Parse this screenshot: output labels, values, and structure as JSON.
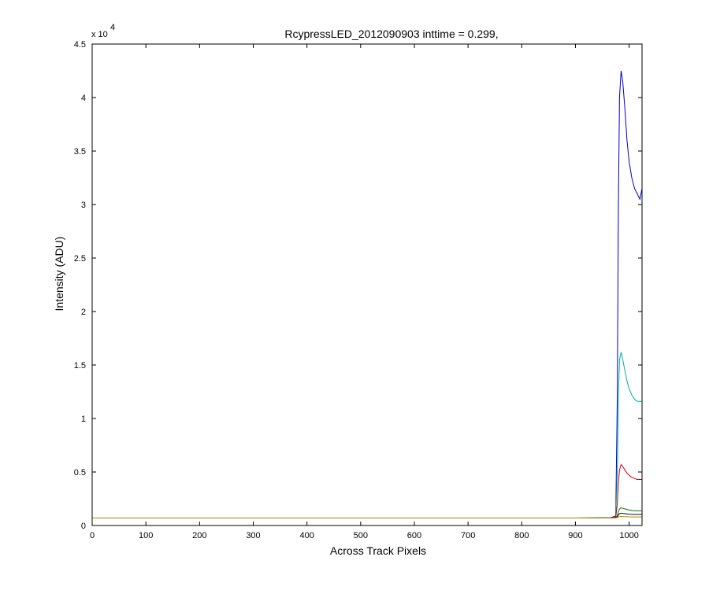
{
  "chart_data": {
    "type": "line",
    "title": "RcypressLED_2012090903 inttime = 0.299,",
    "xlabel": "Across Track Pixels",
    "ylabel": "Intensity (ADU)",
    "y_multiplier_label": "x 10",
    "y_multiplier_exponent": "4",
    "xlim": [
      0,
      1024
    ],
    "ylim": [
      0,
      45000
    ],
    "x_ticks": [
      0,
      100,
      200,
      300,
      400,
      500,
      600,
      700,
      800,
      900,
      1000
    ],
    "x_tick_labels": [
      "0",
      "100",
      "200",
      "300",
      "400",
      "500",
      "600",
      "700",
      "800",
      "900",
      "1000"
    ],
    "y_ticks": [
      0,
      5000,
      10000,
      15000,
      20000,
      25000,
      30000,
      35000,
      40000,
      45000
    ],
    "y_tick_labels": [
      "0",
      "0.5",
      "1",
      "1.5",
      "2",
      "2.5",
      "3",
      "3.5",
      "4",
      "4.5"
    ],
    "grid": false,
    "legend": "none",
    "series": [
      {
        "color": "#0000cc",
        "x": [
          0,
          900,
          965,
          975,
          978,
          980,
          982,
          985,
          988,
          992,
          996,
          1000,
          1005,
          1010,
          1015,
          1020,
          1024
        ],
        "values": [
          700,
          700,
          720,
          900,
          12000,
          30000,
          40000,
          42500,
          41500,
          39000,
          36000,
          34000,
          32500,
          31500,
          31000,
          30500,
          31500
        ]
      },
      {
        "color": "#00aaaa",
        "x": [
          0,
          900,
          965,
          975,
          978,
          980,
          982,
          985,
          988,
          992,
          996,
          1000,
          1005,
          1010,
          1015,
          1020,
          1024
        ],
        "values": [
          700,
          700,
          720,
          800,
          5000,
          12000,
          15500,
          16200,
          15500,
          14500,
          13500,
          12800,
          12200,
          11800,
          11600,
          11600,
          11600
        ]
      },
      {
        "color": "#cc0000",
        "x": [
          0,
          900,
          965,
          975,
          978,
          980,
          982,
          985,
          988,
          992,
          996,
          1000,
          1005,
          1010,
          1015,
          1020,
          1024
        ],
        "values": [
          700,
          700,
          710,
          750,
          2000,
          4000,
          5200,
          5700,
          5500,
          5200,
          4900,
          4700,
          4500,
          4400,
          4300,
          4300,
          4300
        ]
      },
      {
        "color": "#007700",
        "x": [
          0,
          900,
          965,
          975,
          978,
          980,
          982,
          985,
          988,
          992,
          996,
          1000,
          1005,
          1010,
          1015,
          1020,
          1024
        ],
        "values": [
          700,
          700,
          705,
          720,
          900,
          1300,
          1550,
          1650,
          1600,
          1550,
          1500,
          1450,
          1400,
          1380,
          1380,
          1380,
          1380
        ]
      },
      {
        "color": "#111111",
        "x": [
          0,
          900,
          965,
          975,
          978,
          980,
          982,
          985,
          988,
          992,
          996,
          1000,
          1005,
          1010,
          1015,
          1020,
          1024
        ],
        "values": [
          700,
          700,
          702,
          710,
          800,
          1000,
          1100,
          1150,
          1120,
          1100,
          1080,
          1060,
          1050,
          1040,
          1040,
          1040,
          1040
        ]
      },
      {
        "color": "#aa8800",
        "x": [
          0,
          900,
          965,
          975,
          978,
          980,
          982,
          985,
          988,
          992,
          996,
          1000,
          1005,
          1010,
          1015,
          1020,
          1024
        ],
        "values": [
          700,
          700,
          701,
          705,
          740,
          800,
          830,
          850,
          840,
          830,
          820,
          810,
          805,
          800,
          800,
          800,
          800
        ]
      }
    ]
  }
}
